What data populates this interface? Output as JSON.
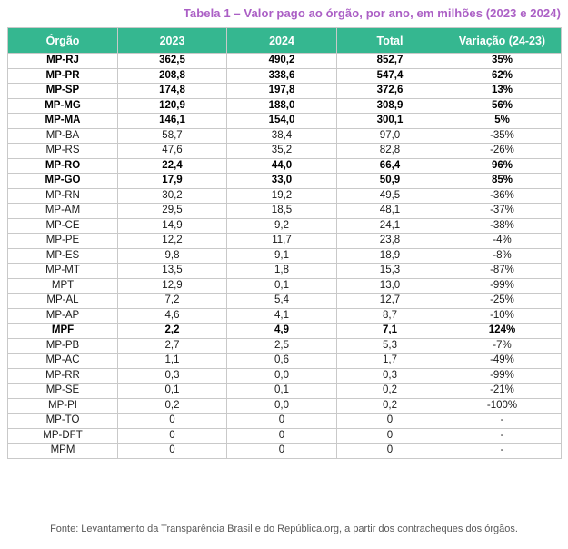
{
  "title": "Tabela 1 – Valor pago ao órgão, por ano, em milhões (2023 e 2024)",
  "colors": {
    "title_text": "#ab5fc5",
    "header_bg": "#35b790",
    "header_text": "#ffffff",
    "grid_border": "#c9c9c9",
    "body_text": "#1a1a1a",
    "source_text": "#595959"
  },
  "table": {
    "columns": [
      "Órgão",
      "2023",
      "2024",
      "Total",
      "Variação (24-23)"
    ],
    "rows": [
      {
        "orgao": "MP-RJ",
        "v2023": "362,5",
        "v2024": "490,2",
        "total": "852,7",
        "variacao": "35%",
        "bold": true
      },
      {
        "orgao": "MP-PR",
        "v2023": "208,8",
        "v2024": "338,6",
        "total": "547,4",
        "variacao": "62%",
        "bold": true
      },
      {
        "orgao": "MP-SP",
        "v2023": "174,8",
        "v2024": "197,8",
        "total": "372,6",
        "variacao": "13%",
        "bold": true
      },
      {
        "orgao": "MP-MG",
        "v2023": "120,9",
        "v2024": "188,0",
        "total": "308,9",
        "variacao": "56%",
        "bold": true
      },
      {
        "orgao": "MP-MA",
        "v2023": "146,1",
        "v2024": "154,0",
        "total": "300,1",
        "variacao": "5%",
        "bold": true
      },
      {
        "orgao": "MP-BA",
        "v2023": "58,7",
        "v2024": "38,4",
        "total": "97,0",
        "variacao": "-35%",
        "bold": false
      },
      {
        "orgao": "MP-RS",
        "v2023": "47,6",
        "v2024": "35,2",
        "total": "82,8",
        "variacao": "-26%",
        "bold": false
      },
      {
        "orgao": "MP-RO",
        "v2023": "22,4",
        "v2024": "44,0",
        "total": "66,4",
        "variacao": "96%",
        "bold": true
      },
      {
        "orgao": "MP-GO",
        "v2023": "17,9",
        "v2024": "33,0",
        "total": "50,9",
        "variacao": "85%",
        "bold": true
      },
      {
        "orgao": "MP-RN",
        "v2023": "30,2",
        "v2024": "19,2",
        "total": "49,5",
        "variacao": "-36%",
        "bold": false
      },
      {
        "orgao": "MP-AM",
        "v2023": "29,5",
        "v2024": "18,5",
        "total": "48,1",
        "variacao": "-37%",
        "bold": false
      },
      {
        "orgao": "MP-CE",
        "v2023": "14,9",
        "v2024": "9,2",
        "total": "24,1",
        "variacao": "-38%",
        "bold": false
      },
      {
        "orgao": "MP-PE",
        "v2023": "12,2",
        "v2024": "11,7",
        "total": "23,8",
        "variacao": "-4%",
        "bold": false
      },
      {
        "orgao": "MP-ES",
        "v2023": "9,8",
        "v2024": "9,1",
        "total": "18,9",
        "variacao": "-8%",
        "bold": false
      },
      {
        "orgao": "MP-MT",
        "v2023": "13,5",
        "v2024": "1,8",
        "total": "15,3",
        "variacao": "-87%",
        "bold": false
      },
      {
        "orgao": "MPT",
        "v2023": "12,9",
        "v2024": "0,1",
        "total": "13,0",
        "variacao": "-99%",
        "bold": false
      },
      {
        "orgao": "MP-AL",
        "v2023": "7,2",
        "v2024": "5,4",
        "total": "12,7",
        "variacao": "-25%",
        "bold": false
      },
      {
        "orgao": "MP-AP",
        "v2023": "4,6",
        "v2024": "4,1",
        "total": "8,7",
        "variacao": "-10%",
        "bold": false
      },
      {
        "orgao": "MPF",
        "v2023": "2,2",
        "v2024": "4,9",
        "total": "7,1",
        "variacao": "124%",
        "bold": true
      },
      {
        "orgao": "MP-PB",
        "v2023": "2,7",
        "v2024": "2,5",
        "total": "5,3",
        "variacao": "-7%",
        "bold": false
      },
      {
        "orgao": "MP-AC",
        "v2023": "1,1",
        "v2024": "0,6",
        "total": "1,7",
        "variacao": "-49%",
        "bold": false
      },
      {
        "orgao": "MP-RR",
        "v2023": "0,3",
        "v2024": "0,0",
        "total": "0,3",
        "variacao": "-99%",
        "bold": false
      },
      {
        "orgao": "MP-SE",
        "v2023": "0,1",
        "v2024": "0,1",
        "total": "0,2",
        "variacao": "-21%",
        "bold": false
      },
      {
        "orgao": "MP-PI",
        "v2023": "0,2",
        "v2024": "0,0",
        "total": "0,2",
        "variacao": "-100%",
        "bold": false
      },
      {
        "orgao": "MP-TO",
        "v2023": "0",
        "v2024": "0",
        "total": "0",
        "variacao": "-",
        "bold": false
      },
      {
        "orgao": "MP-DFT",
        "v2023": "0",
        "v2024": "0",
        "total": "0",
        "variacao": "-",
        "bold": false
      },
      {
        "orgao": "MPM",
        "v2023": "0",
        "v2024": "0",
        "total": "0",
        "variacao": "-",
        "bold": false
      }
    ]
  },
  "source": "Fonte: Levantamento da Transparência Brasil e do República.org, a partir dos contracheques dos órgãos."
}
